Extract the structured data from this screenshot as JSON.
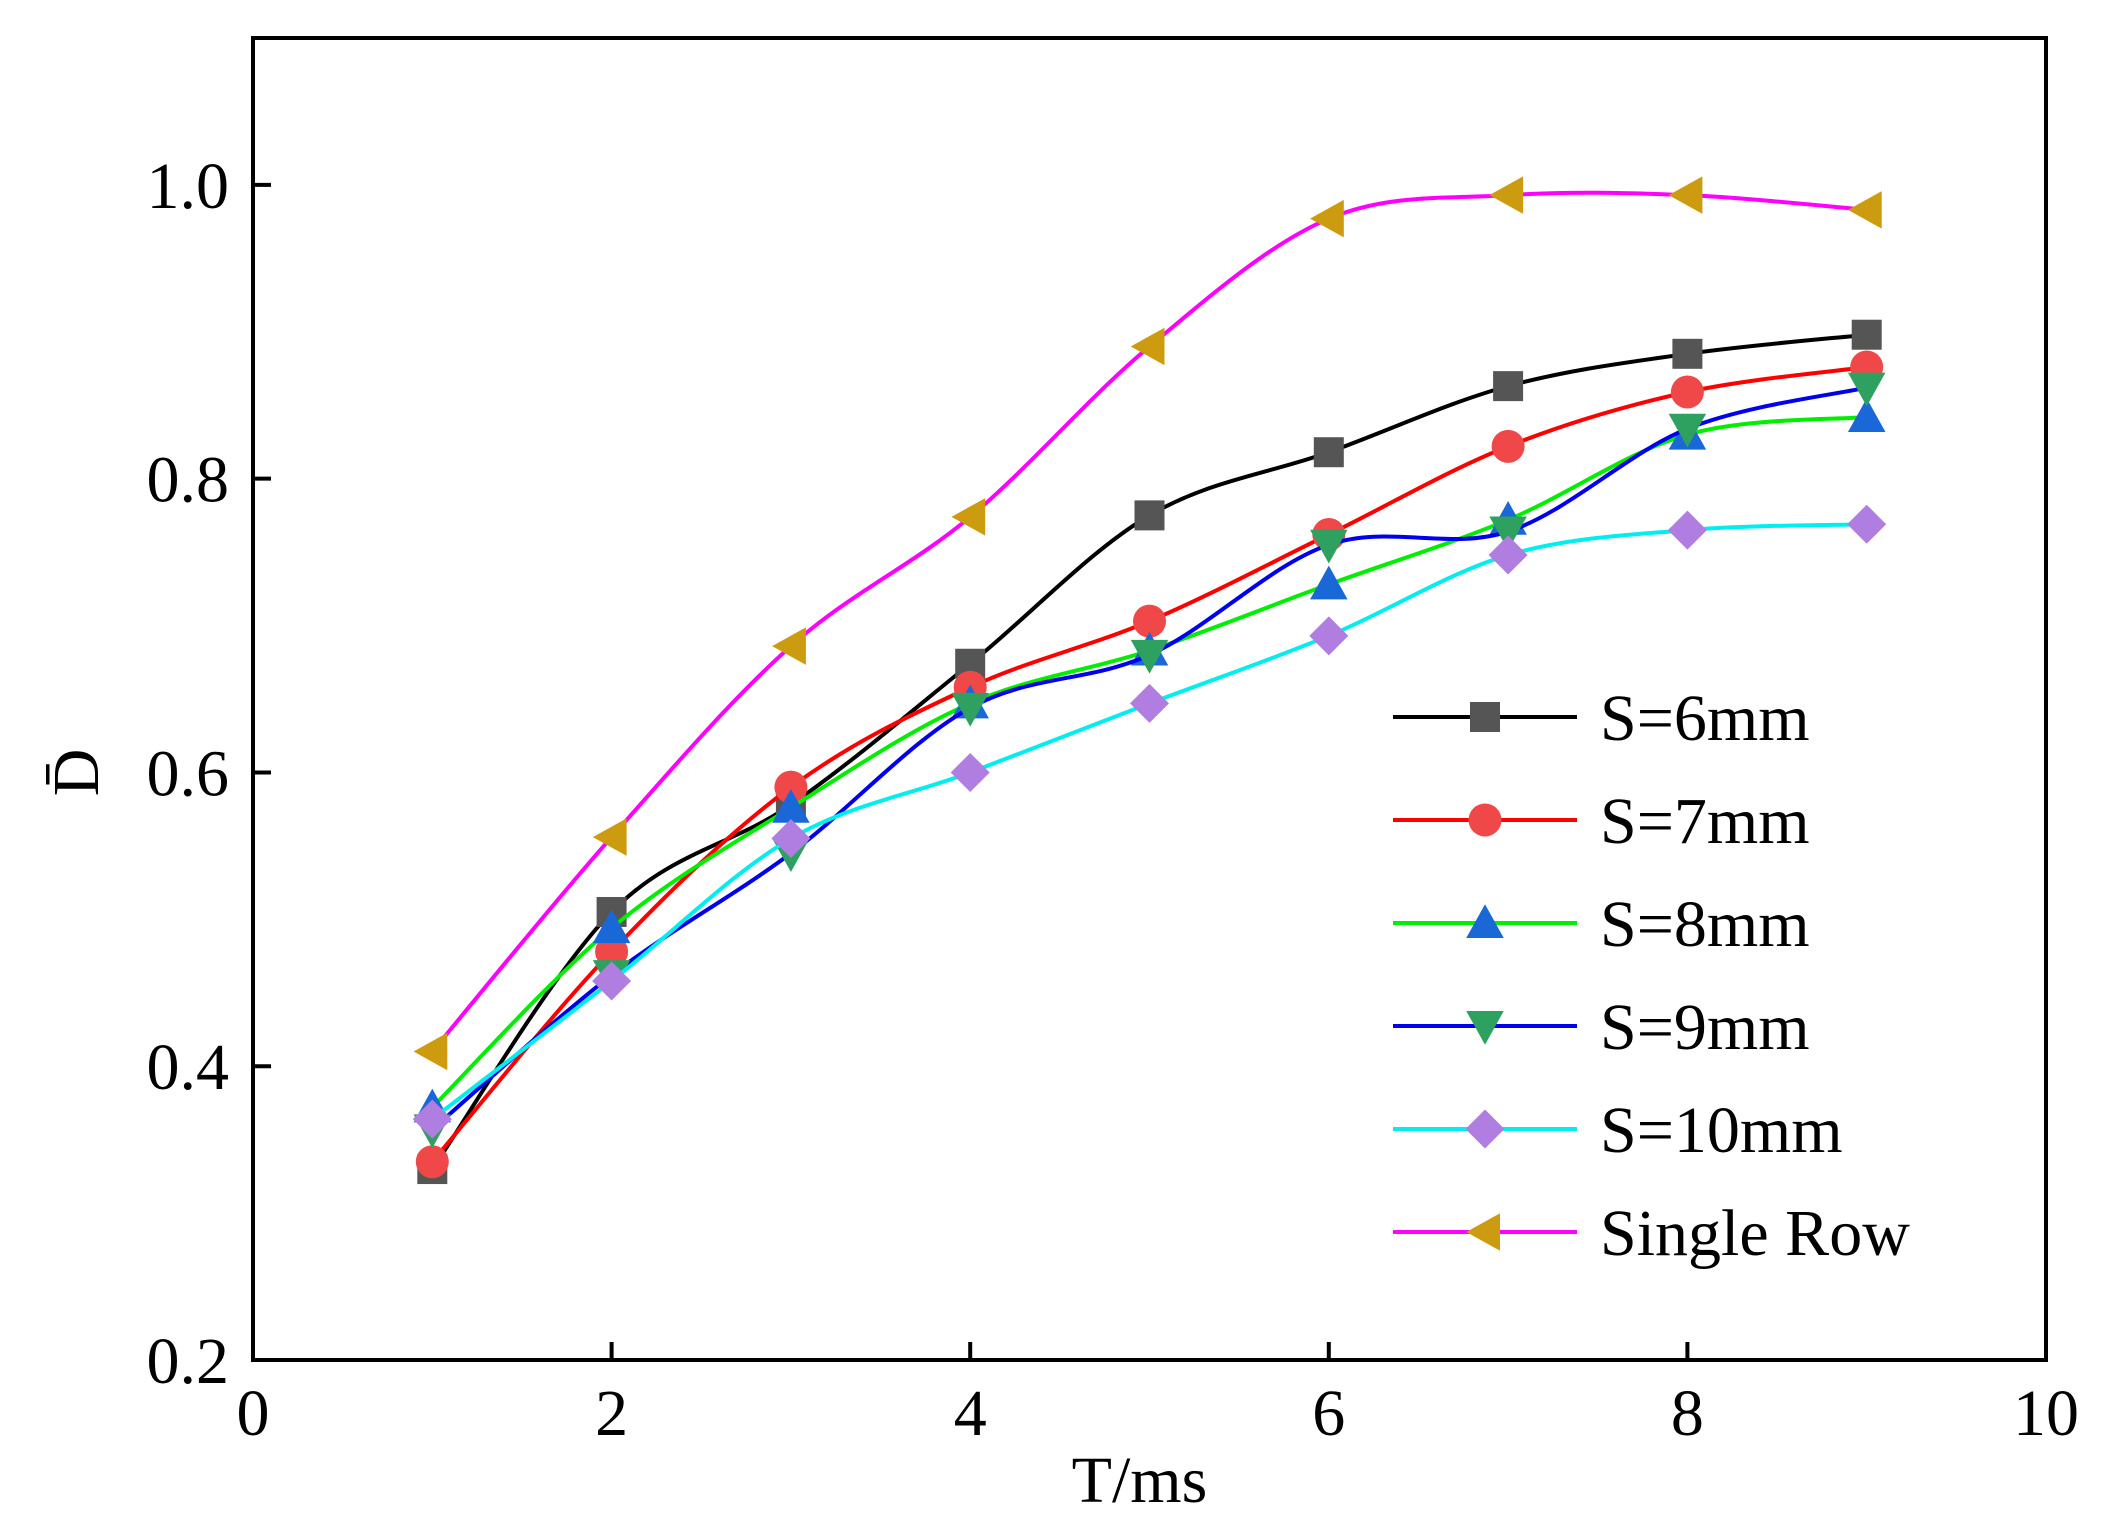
{
  "chart_data": {
    "type": "line",
    "title": "",
    "xlabel": "T/ms",
    "ylabel": "D̄",
    "xlim": [
      0,
      10
    ],
    "ylim": [
      0.2,
      1.1
    ],
    "xticks": [
      0,
      2,
      4,
      6,
      8,
      10
    ],
    "xtick_labels": [
      "0",
      "2",
      "4",
      "6",
      "8",
      "10"
    ],
    "yticks": [
      0.2,
      0.4,
      0.6,
      0.8,
      1.0
    ],
    "ytick_labels": [
      "0.2",
      "0.4",
      "0.6",
      "0.8",
      "1.0"
    ],
    "grid": false,
    "legend_position": "lower-right",
    "x": [
      1,
      2,
      3,
      4,
      5,
      6,
      7,
      8,
      9
    ],
    "series": [
      {
        "name": "S=6mm",
        "color": "#000000",
        "markerColor": "#555555",
        "marker": "square",
        "values": [
          0.33,
          0.505,
          0.578,
          0.674,
          0.775,
          0.818,
          0.863,
          0.885,
          0.898
        ]
      },
      {
        "name": "S=7mm",
        "color": "#ff0000",
        "markerColor": "#f04848",
        "marker": "circle",
        "values": [
          0.335,
          0.478,
          0.59,
          0.658,
          0.703,
          0.762,
          0.822,
          0.859,
          0.876
        ]
      },
      {
        "name": "S=8mm",
        "color": "#00ee00",
        "markerColor": "#1a68d8",
        "marker": "triangle-up",
        "values": [
          0.372,
          0.494,
          0.576,
          0.647,
          0.683,
          0.728,
          0.772,
          0.83,
          0.842
        ]
      },
      {
        "name": "S=9mm",
        "color": "#0000ee",
        "markerColor": "#2ea060",
        "marker": "triangle-down",
        "values": [
          0.357,
          0.462,
          0.545,
          0.644,
          0.68,
          0.755,
          0.764,
          0.834,
          0.862
        ]
      },
      {
        "name": "S=10mm",
        "color": "#00eeee",
        "markerColor": "#b07ee0",
        "marker": "diamond",
        "values": [
          0.364,
          0.458,
          0.555,
          0.6,
          0.647,
          0.693,
          0.748,
          0.765,
          0.769
        ]
      },
      {
        "name": "Single Row",
        "color": "#ff00ff",
        "markerColor": "#cc9b10",
        "marker": "triangle-left",
        "values": [
          0.41,
          0.556,
          0.686,
          0.774,
          0.89,
          0.977,
          0.993,
          0.993,
          0.983
        ]
      }
    ]
  }
}
